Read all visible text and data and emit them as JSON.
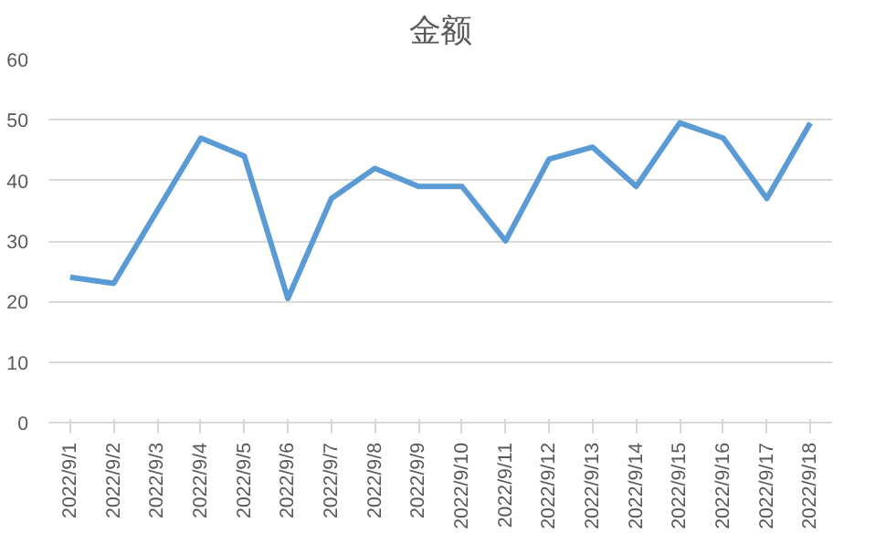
{
  "chart_data": {
    "type": "line",
    "title": "金额",
    "categories": [
      "2022/9/1",
      "2022/9/2",
      "2022/9/3",
      "2022/9/4",
      "2022/9/5",
      "2022/9/6",
      "2022/9/7",
      "2022/9/8",
      "2022/9/9",
      "2022/9/10",
      "2022/9/11",
      "2022/9/12",
      "2022/9/13",
      "2022/9/14",
      "2022/9/15",
      "2022/9/16",
      "2022/9/17",
      "2022/9/18"
    ],
    "series": [
      {
        "color": "#5b9bd5",
        "values": [
          24,
          23,
          35,
          47,
          44,
          20.5,
          37,
          42,
          39,
          39,
          30,
          43.5,
          45.5,
          39,
          49.5,
          47,
          37,
          49.5
        ]
      }
    ],
    "ylim": [
      0,
      60
    ],
    "yticks": [
      0,
      10,
      20,
      30,
      40,
      50,
      60
    ],
    "grid": "y",
    "marker": "none",
    "line_style": "solid"
  }
}
